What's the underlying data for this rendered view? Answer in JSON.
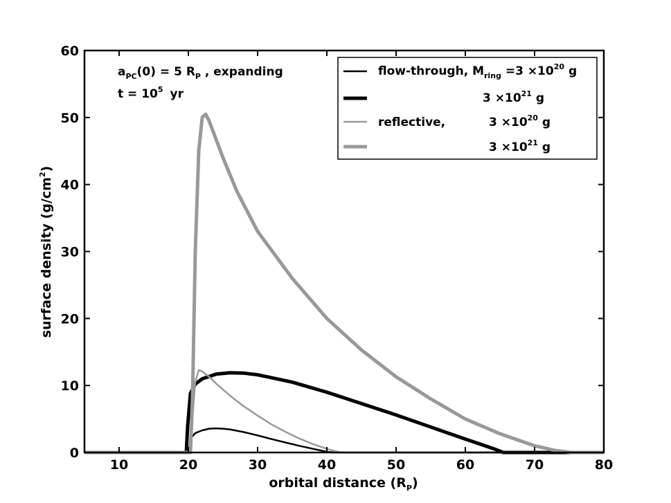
{
  "chart_data": {
    "type": "line",
    "xlabel": "orbital distance",
    "xlabel_unit": "P",
    "ylabel": "surface density (g/cm",
    "ylabel_tail": ")",
    "ylabel_sup": "2",
    "xlim": [
      5,
      80
    ],
    "ylim": [
      0,
      60
    ],
    "xticks": [
      10,
      20,
      30,
      40,
      50,
      60,
      70,
      80
    ],
    "yticks": [
      0,
      10,
      20,
      30,
      40,
      50,
      60
    ],
    "grid": false,
    "legend_position": "top-right",
    "annotation": {
      "line1_a": "a",
      "line1_sub": "PC",
      "line1_b": "(0) = 5 R",
      "line1_sub2": "P",
      "line1_c": " , expanding",
      "line2_a": "t = 10",
      "line2_sup": "5",
      "line2_b": "yr"
    },
    "legend": [
      {
        "label": "flow-through, M",
        "label_sub": "ring",
        "label_mid": " =3 ×10",
        "label_sup": "20",
        "label_end": " g"
      },
      {
        "label": "3 ×10",
        "label_sup": "21",
        "label_end": " g"
      },
      {
        "label": "reflective,",
        "value": "3 ×10",
        "label_sup": "20",
        "label_end": " g"
      },
      {
        "label": "3 ×10",
        "label_sup": "21",
        "label_end": " g"
      }
    ],
    "series": [
      {
        "color": "#000000",
        "width": 2.5,
        "x": [
          5,
          19.9,
          20.2,
          20.5,
          21,
          22,
          23,
          24,
          25,
          26,
          28,
          30,
          32,
          34,
          36,
          38,
          40,
          41,
          80
        ],
        "y": [
          0,
          0,
          0.5,
          2.3,
          2.9,
          3.3,
          3.55,
          3.6,
          3.55,
          3.45,
          3.05,
          2.55,
          2.0,
          1.5,
          1.0,
          0.55,
          0.1,
          0,
          0
        ]
      },
      {
        "color": "#000000",
        "width": 5,
        "x": [
          5,
          19.7,
          19.9,
          20.3,
          21,
          22,
          24,
          26,
          28,
          30,
          35,
          40,
          45,
          50,
          55,
          60,
          62,
          64,
          65.5,
          80
        ],
        "y": [
          0,
          0,
          4,
          8.8,
          10.2,
          11.0,
          11.7,
          11.9,
          11.85,
          11.6,
          10.5,
          9.0,
          7.3,
          5.6,
          3.8,
          2.0,
          1.3,
          0.6,
          0,
          0
        ]
      },
      {
        "color": "#999999",
        "width": 2.5,
        "x": [
          5,
          19.8,
          20.1,
          20.5,
          21,
          21.5,
          22,
          23,
          24,
          26,
          28,
          30,
          32,
          34,
          36,
          38,
          40,
          41,
          42,
          80
        ],
        "y": [
          0,
          0,
          0.5,
          4,
          10.5,
          12.3,
          12.1,
          11.3,
          10.3,
          8.5,
          6.9,
          5.5,
          4.2,
          3.1,
          2.1,
          1.25,
          0.55,
          0.25,
          0,
          0
        ]
      },
      {
        "color": "#999999",
        "width": 5,
        "x": [
          5,
          20.3,
          20.6,
          21,
          21.5,
          22,
          22.5,
          23,
          25,
          27,
          30,
          35,
          40,
          45,
          50,
          55,
          60,
          65,
          70,
          73,
          75.3,
          80
        ],
        "y": [
          0,
          0,
          8,
          30,
          45,
          50,
          50.5,
          49.5,
          44,
          39,
          33,
          26,
          20,
          15.3,
          11.3,
          8,
          5,
          2.8,
          1.0,
          0.3,
          0,
          0
        ]
      }
    ]
  }
}
